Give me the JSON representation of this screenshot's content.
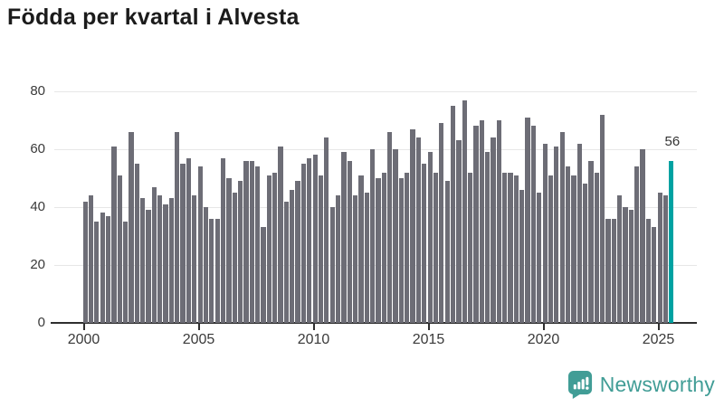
{
  "title": "Födda per kvartal i Alvesta",
  "logo": {
    "text": "Newsworthy",
    "icon": "newsworthy-speech-bubble-chart-icon",
    "color": "#419d96"
  },
  "colors": {
    "bar": "#6d6d76",
    "highlight": "#00a2a2",
    "gridline": "#e7e7e7",
    "axis": "#2f2f2f",
    "tick_label": "#3a3a3a",
    "title": "#1b1b1b"
  },
  "chart_data": {
    "type": "bar",
    "title": "Födda per kvartal i Alvesta",
    "frequency": "quarterly",
    "x_start": "2000-Q1",
    "x_end": "2025-Q3",
    "x_tick_labels": [
      "2000",
      "2005",
      "2010",
      "2015",
      "2020",
      "2025"
    ],
    "y_ticks": [
      0,
      20,
      40,
      60,
      80
    ],
    "ylim": [
      0,
      83
    ],
    "grid": "horizontal",
    "series": [
      {
        "name": "Födda per kvartal",
        "values": [
          42,
          44,
          35,
          38,
          37,
          61,
          51,
          35,
          66,
          55,
          43,
          39,
          47,
          44,
          41,
          43,
          66,
          55,
          57,
          44,
          54,
          40,
          36,
          36,
          57,
          50,
          45,
          49,
          56,
          56,
          54,
          33,
          51,
          52,
          61,
          42,
          46,
          49,
          55,
          57,
          58,
          51,
          64,
          40,
          44,
          59,
          56,
          44,
          51,
          45,
          60,
          50,
          52,
          66,
          60,
          50,
          52,
          67,
          64,
          55,
          59,
          52,
          69,
          49,
          75,
          63,
          77,
          52,
          68,
          70,
          59,
          64,
          70,
          52,
          52,
          51,
          46,
          71,
          68,
          45,
          62,
          51,
          61,
          66,
          54,
          51,
          62,
          48,
          56,
          52,
          72,
          36,
          36,
          44,
          40,
          39,
          54,
          60,
          36,
          33,
          45,
          44,
          56
        ]
      }
    ],
    "highlight": {
      "index": 102,
      "value": 56,
      "label": "56"
    }
  }
}
